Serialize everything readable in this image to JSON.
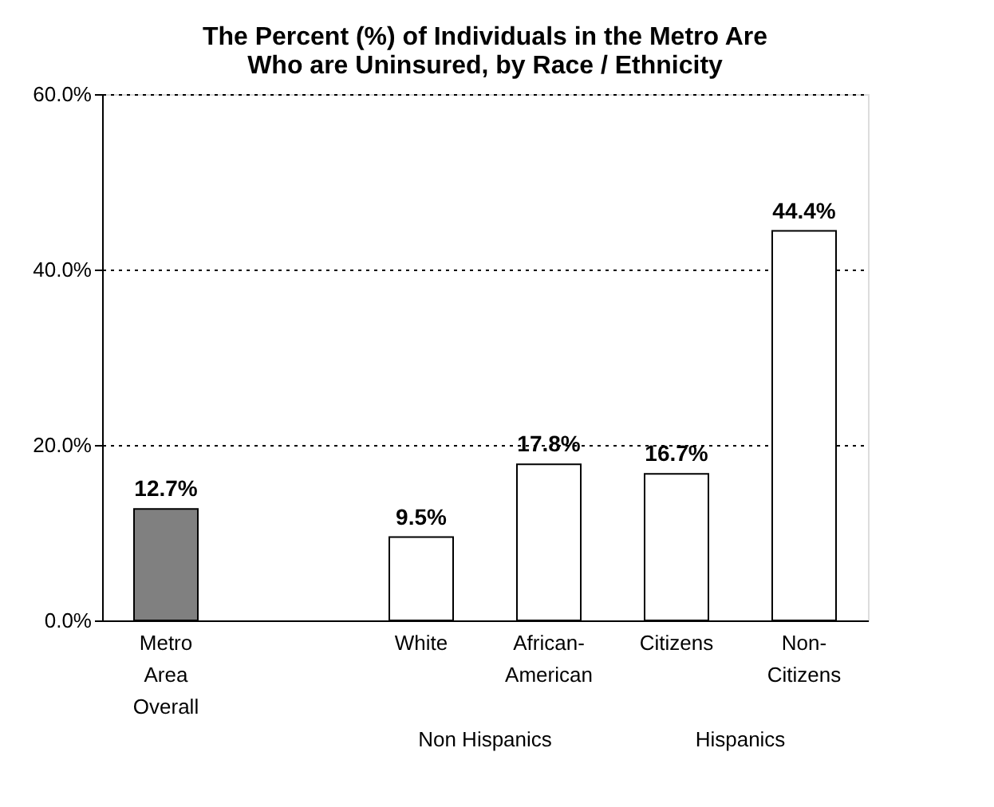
{
  "chart_data": {
    "type": "bar",
    "title": [
      "The Percent (%) of Individuals in the Metro Are",
      "Who are Uninsured, by Race / Ethnicity"
    ],
    "categories": [
      "Metro\nArea\nOverall",
      null,
      "White",
      "African-\nAmerican",
      "Citizens",
      "Non-\nCitizens"
    ],
    "values": [
      12.7,
      null,
      9.5,
      17.8,
      16.7,
      44.4
    ],
    "colors": [
      "#808080",
      null,
      "#ffffff",
      "#ffffff",
      "#ffffff",
      "#ffffff"
    ],
    "value_labels": [
      "12.7%",
      null,
      "9.5%",
      "17.8%",
      "16.7%",
      "44.4%"
    ],
    "ylim": [
      0,
      60
    ],
    "yticks": [
      {
        "value": 0,
        "label": "0.0%"
      },
      {
        "value": 20,
        "label": "20.0%"
      },
      {
        "value": 40,
        "label": "40.0%"
      },
      {
        "value": 60,
        "label": "60.0%"
      }
    ],
    "grid": "y",
    "annotations": [
      "Non Hispanics",
      "Hispanics"
    ]
  }
}
